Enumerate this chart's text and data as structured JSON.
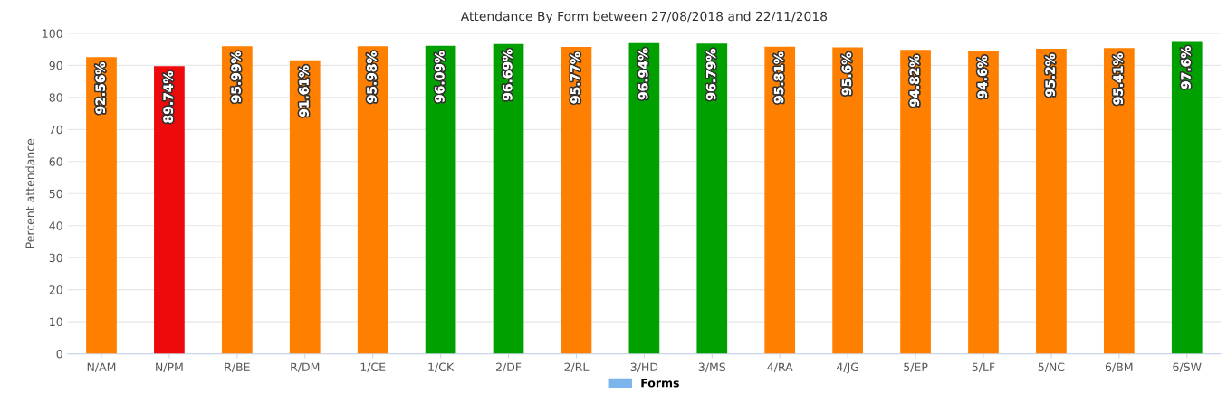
{
  "chart_data": {
    "type": "bar",
    "title": "Attendance By Form between 27/08/2018 and 22/11/2018",
    "ylabel": "Percent attendance",
    "categories": [
      "N/AM",
      "N/PM",
      "R/BE",
      "R/DM",
      "1/CE",
      "1/CK",
      "2/DF",
      "2/RL",
      "3/HD",
      "3/MS",
      "4/RA",
      "4/JG",
      "5/EP",
      "5/LF",
      "5/NC",
      "6/BM",
      "6/SW"
    ],
    "series": [
      {
        "name": "Forms",
        "color": "#7cb5ec",
        "values": [
          92.56,
          89.74,
          95.99,
          91.61,
          95.98,
          96.09,
          96.69,
          95.77,
          96.94,
          96.79,
          95.81,
          95.6,
          94.82,
          94.6,
          95.2,
          95.41,
          97.6
        ],
        "colors": [
          "#ff7f00",
          "#ee0a0a",
          "#ff7f00",
          "#ff7f00",
          "#ff7f00",
          "#00a000",
          "#00a000",
          "#ff7f00",
          "#00a000",
          "#00a000",
          "#ff7f00",
          "#ff7f00",
          "#ff7f00",
          "#ff7f00",
          "#ff7f00",
          "#ff7f00",
          "#00a000"
        ],
        "value_labels": [
          "92.56%",
          "89.74%",
          "95.99%",
          "91.61%",
          "95.98%",
          "96.09%",
          "96.69%",
          "95.77%",
          "96.94%",
          "96.79%",
          "95.81%",
          "95.6%",
          "94.82%",
          "94.6%",
          "95.2%",
          "95.41%",
          "97.6%"
        ]
      }
    ],
    "ylim": [
      0,
      100
    ],
    "yticks": [
      0,
      10,
      20,
      30,
      40,
      50,
      60,
      70,
      80,
      90,
      100
    ],
    "grid": "y",
    "legend": "bottom"
  }
}
